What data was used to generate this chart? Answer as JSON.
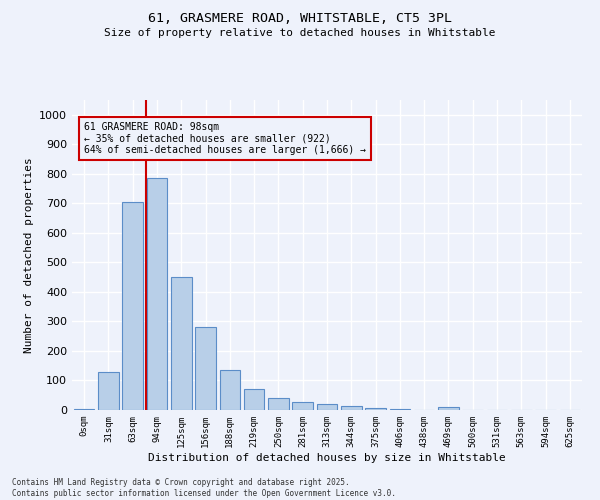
{
  "title_line1": "61, GRASMERE ROAD, WHITSTABLE, CT5 3PL",
  "title_line2": "Size of property relative to detached houses in Whitstable",
  "xlabel": "Distribution of detached houses by size in Whitstable",
  "ylabel": "Number of detached properties",
  "bar_labels": [
    "0sqm",
    "31sqm",
    "63sqm",
    "94sqm",
    "125sqm",
    "156sqm",
    "188sqm",
    "219sqm",
    "250sqm",
    "281sqm",
    "313sqm",
    "344sqm",
    "375sqm",
    "406sqm",
    "438sqm",
    "469sqm",
    "500sqm",
    "531sqm",
    "563sqm",
    "594sqm",
    "625sqm"
  ],
  "bar_values": [
    5,
    130,
    705,
    785,
    450,
    280,
    135,
    70,
    40,
    28,
    20,
    12,
    8,
    3,
    0,
    10,
    0,
    0,
    0,
    0,
    0
  ],
  "bar_color": "#b8cfe8",
  "bar_edge_color": "#5b8dc8",
  "vline_color": "#cc0000",
  "annotation_text": "61 GRASMERE ROAD: 98sqm\n← 35% of detached houses are smaller (922)\n64% of semi-detached houses are larger (1,666) →",
  "annotation_box_color": "#cc0000",
  "ylim": [
    0,
    1050
  ],
  "yticks": [
    0,
    100,
    200,
    300,
    400,
    500,
    600,
    700,
    800,
    900,
    1000
  ],
  "bg_color": "#eef2fb",
  "grid_color": "#ffffff",
  "footer_text": "Contains HM Land Registry data © Crown copyright and database right 2025.\nContains public sector information licensed under the Open Government Licence v3.0."
}
